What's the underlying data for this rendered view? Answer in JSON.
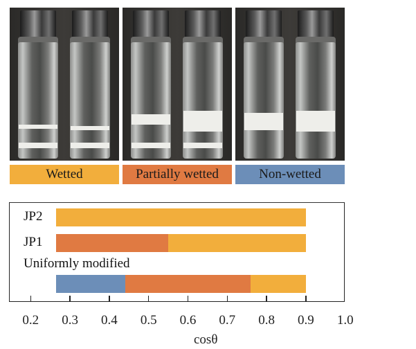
{
  "legend": [
    {
      "label": "Wetted",
      "color": "#F2AE3C"
    },
    {
      "label": "Partially wetted",
      "color": "#E07A42"
    },
    {
      "label": "Non-wetted",
      "color": "#6C8EB8"
    }
  ],
  "photos": [
    {
      "name": "wetted-photo"
    },
    {
      "name": "partially-wetted-photo"
    },
    {
      "name": "non-wetted-photo"
    }
  ],
  "chart_data": {
    "type": "bar",
    "orientation": "horizontal-stacked",
    "xlabel": "cosθ",
    "xlim": [
      0.2,
      1.0
    ],
    "xticks": [
      "0.2",
      "0.3",
      "0.4",
      "0.5",
      "0.6",
      "0.7",
      "0.8",
      "0.9",
      "1.0"
    ],
    "categories": [
      "JP2",
      "JP1",
      "Uniformly modified"
    ],
    "series": [
      {
        "category": "JP2",
        "segments": [
          {
            "state": "Wetted",
            "from": 0.265,
            "to": 0.9
          }
        ]
      },
      {
        "category": "JP1",
        "segments": [
          {
            "state": "Partially wetted",
            "from": 0.265,
            "to": 0.55
          },
          {
            "state": "Wetted",
            "from": 0.55,
            "to": 0.9
          }
        ]
      },
      {
        "category": "Uniformly modified",
        "segments": [
          {
            "state": "Non-wetted",
            "from": 0.265,
            "to": 0.44
          },
          {
            "state": "Partially wetted",
            "from": 0.44,
            "to": 0.76
          },
          {
            "state": "Wetted",
            "from": 0.76,
            "to": 0.9
          }
        ]
      }
    ]
  }
}
